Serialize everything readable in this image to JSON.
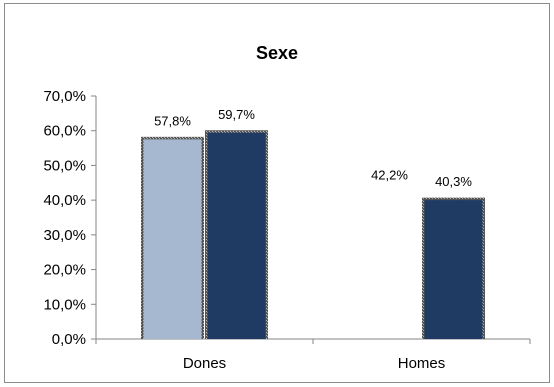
{
  "chart_data": {
    "type": "bar",
    "title": "Sexe",
    "categories": [
      "Dones",
      "Homes"
    ],
    "series": [
      {
        "values": [
          57.8,
          42.2
        ],
        "color": "#a5b8cf",
        "labels": [
          "57,8%",
          "42,2%"
        ],
        "hidden_bars": [
          false,
          true
        ]
      },
      {
        "values": [
          59.7,
          40.3
        ],
        "color": "#1f3a63",
        "labels": [
          "59,7%",
          "40,3%"
        ],
        "hidden_bars": [
          false,
          false
        ]
      }
    ],
    "ylim": [
      0,
      70
    ],
    "yticks": [
      0,
      10,
      20,
      30,
      40,
      50,
      60,
      70
    ],
    "ytick_labels": [
      "0,0%",
      "10,0%",
      "20,0%",
      "30,0%",
      "40,0%",
      "50,0%",
      "60,0%",
      "70,0%"
    ],
    "grid": false,
    "legend": "none"
  }
}
